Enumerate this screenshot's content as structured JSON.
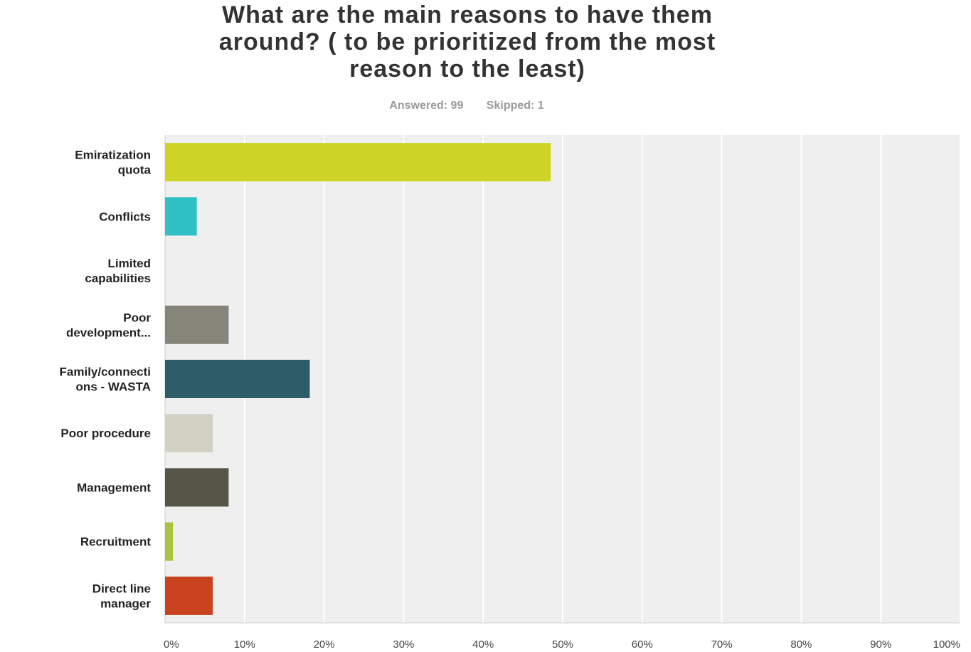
{
  "header": {
    "title_lines": [
      "What are the main reasons to have them",
      "around? ( to be prioritized from the most",
      "reason to the least)"
    ],
    "answered": "Answered: 99",
    "skipped": "Skipped: 1"
  },
  "chart_data": {
    "type": "bar",
    "orientation": "horizontal",
    "title": "What are the main reasons to have them around? ( to be prioritized from the most reason to the least)",
    "categories": [
      [
        "Emiratization",
        "quota"
      ],
      [
        "Conflicts"
      ],
      [
        "Limited",
        "capabilities"
      ],
      [
        "Poor",
        "development..."
      ],
      [
        "Family/connecti",
        "ons - WASTA"
      ],
      [
        "Poor procedure"
      ],
      [
        "Management"
      ],
      [
        "Recruitment"
      ],
      [
        "Direct line",
        "manager"
      ]
    ],
    "values": [
      48.5,
      4,
      0,
      8,
      18.2,
      6,
      8,
      1,
      6
    ],
    "colors": [
      "#cdd425",
      "#2ec0c4",
      "#e0e0e0",
      "#85857a",
      "#2e5d69",
      "#d2d1c4",
      "#565548",
      "#a8c43a",
      "#c8431e"
    ],
    "xlim": [
      0,
      100
    ],
    "xticks": [
      "0%",
      "10%",
      "20%",
      "30%",
      "40%",
      "50%",
      "60%",
      "70%",
      "80%",
      "90%",
      "100%"
    ],
    "grid": true,
    "legend": "none",
    "background_color": "#efefef"
  }
}
